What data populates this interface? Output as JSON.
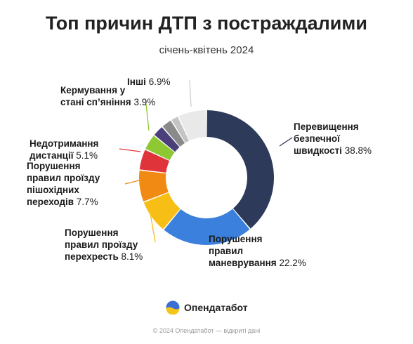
{
  "title": "Топ причин ДТП з постраждалими",
  "subtitle": "січень-квітень 2024",
  "brand": {
    "name": "Опендатабот",
    "colors": [
      "#3b6fd1",
      "#f5c518"
    ]
  },
  "footer": "© 2024 Опендатабот — відкриті дані",
  "chart_data": {
    "type": "pie",
    "variant": "donut",
    "title": "Топ причин ДТП з постраждалими",
    "subtitle": "січень-квітень 2024",
    "unit": "%",
    "slices": [
      {
        "name": "Перевищення безпечної швидкості",
        "value": 38.8,
        "value_label": "38.8%",
        "color": "#2d3a59"
      },
      {
        "name": "Порушення правил маневрування",
        "value": 22.2,
        "value_label": "22.2%",
        "color": "#3a80dc"
      },
      {
        "name": "Порушення правил проїзду перехресть",
        "value": 8.1,
        "value_label": "8.1%",
        "color": "#f7bf16"
      },
      {
        "name": "Порушення правил проїзду пішохідних переходів",
        "value": 7.7,
        "value_label": "7.7%",
        "color": "#f08a12"
      },
      {
        "name": "Недотримання дистанції",
        "value": 5.1,
        "value_label": "5.1%",
        "color": "#e0343b"
      },
      {
        "name": "Кермування у стані сп’яніння",
        "value": 3.9,
        "value_label": "3.9%",
        "color": "#8dc832"
      },
      {
        "name": "",
        "value": 2.8,
        "color": "#4b3f7a"
      },
      {
        "name": "",
        "value": 2.6,
        "color": "#8a8a8a"
      },
      {
        "name": "",
        "value": 1.9,
        "color": "#c4c4c4"
      },
      {
        "name": "Інші",
        "value": 6.9,
        "value_label": "6.9%",
        "color": "#e9e9e9"
      }
    ]
  },
  "labels": [
    {
      "lines": [
        "Перевищення",
        "безпечної",
        "швидкості"
      ],
      "value": "38.8%"
    },
    {
      "lines": [
        "Порушення",
        "правил",
        "маневрування"
      ],
      "value": "22.2%"
    },
    {
      "lines": [
        "Порушення",
        "правил проїзду",
        "перехресть"
      ],
      "value": "8.1%"
    },
    {
      "lines": [
        "Порушення",
        "правил проїзду",
        "пішохідних",
        "переходів"
      ],
      "value": "7.7%"
    },
    {
      "lines": [
        "Недотримання",
        "дистанції"
      ],
      "value": "5.1%"
    },
    {
      "lines": [
        "Кермування у",
        "стані сп’яніння"
      ],
      "value": "3.9%"
    },
    {
      "lines": [
        "Інші"
      ],
      "value": "6.9%"
    }
  ]
}
